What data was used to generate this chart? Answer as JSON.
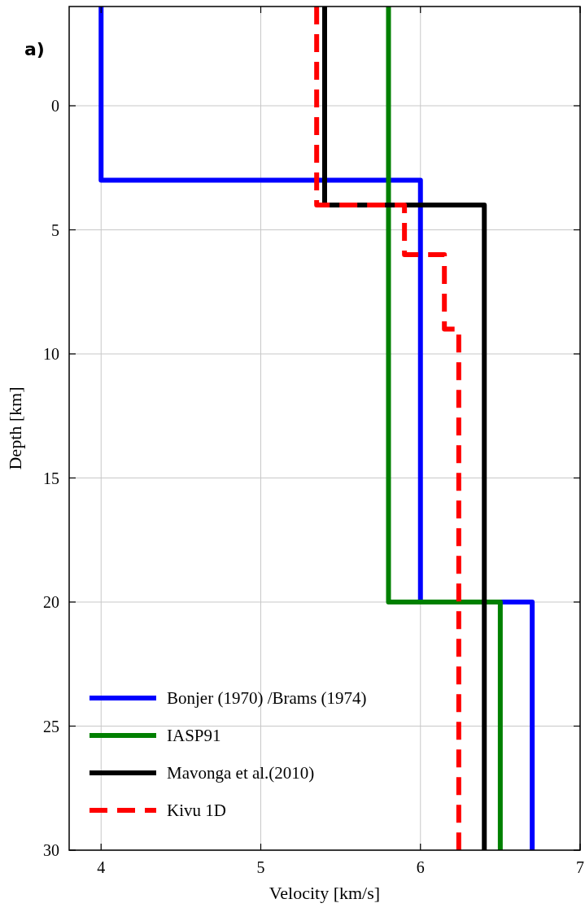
{
  "chart_data": {
    "type": "line",
    "xlabel": "Velocity [km/s]",
    "ylabel": "Depth [km]",
    "annotations": [
      "a)"
    ],
    "xlim": [
      3.8,
      7
    ],
    "ylim": [
      30,
      -4
    ],
    "xticks": [
      4,
      5,
      6,
      7
    ],
    "yticks": [
      0,
      5,
      10,
      15,
      20,
      25,
      30
    ],
    "grid": true,
    "legend": "bottom left",
    "series": [
      {
        "name": "Bonjer (1970) /Brams (1974)",
        "color": "#0000ff",
        "line_style": "solid",
        "x": [
          4,
          4,
          6,
          6,
          6.7,
          6.7
        ],
        "values": [
          -4,
          3,
          3,
          20,
          20,
          30
        ]
      },
      {
        "name": "IASP91",
        "color": "#008000",
        "line_style": "solid",
        "x": [
          5.8,
          5.8,
          6.5,
          6.5
        ],
        "values": [
          -4,
          20,
          20,
          30
        ]
      },
      {
        "name": "Mavonga et al.(2010)",
        "color": "#000000",
        "line_style": "solid",
        "x": [
          5.4,
          5.4,
          6.4,
          6.4
        ],
        "values": [
          -4,
          4,
          4,
          30
        ]
      },
      {
        "name": "Kivu 1D",
        "color": "#ff0000",
        "line_style": "dashed",
        "x": [
          5.35,
          5.35,
          5.9,
          5.9,
          6.15,
          6.15,
          6.24,
          6.24
        ],
        "values": [
          -4,
          4,
          4,
          6,
          6,
          9,
          9,
          30
        ]
      }
    ]
  }
}
